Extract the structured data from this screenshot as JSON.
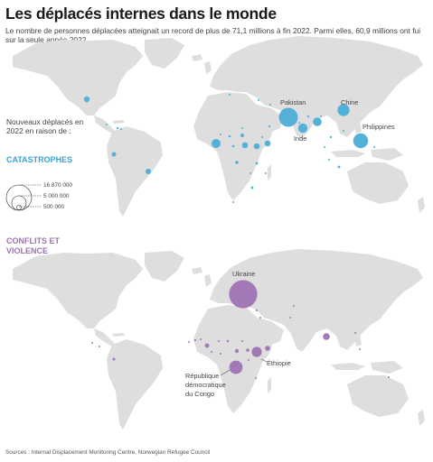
{
  "title": "Les déplacés internes dans le monde",
  "subtitle": "Le nombre de personnes déplacées atteignait un record de plus de 71,1 millions à fin 2022. Parmi elles, 60,9 millions ont fui sur la seule année 2022",
  "legend": {
    "intro": "Nouveaux déplacés en 2022 en raison de :",
    "values": [
      "16 870 000",
      "5 000 000",
      "500 000"
    ]
  },
  "sections": {
    "disasters": {
      "heading": "CATASTROPHES",
      "color": "#4baed7",
      "labels": {
        "pakistan": "Pakistan",
        "chine": "Chine",
        "inde": "Inde",
        "philippines": "Philippines"
      }
    },
    "conflicts": {
      "heading": "CONFLITS ET VIOLENCE",
      "color": "#9f72b4",
      "labels": {
        "ukraine": "Ukraine",
        "ethiopie": "Éthiopie",
        "rdc_1": "République",
        "rdc_2": "démocratique",
        "rdc_3": "du Congo"
      }
    }
  },
  "land_color": "#dedede",
  "sources": "Sources : Internal Displacement Monitoring Centre, Norwegian Refugee Council"
}
